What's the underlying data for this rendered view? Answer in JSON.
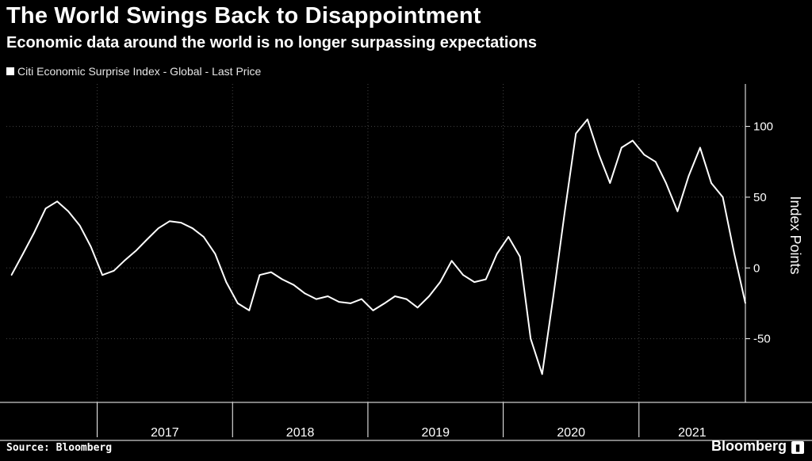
{
  "header": {
    "title": "The World Swings Back to Disappointment",
    "subtitle": "Economic data around the world is no longer surpassing expectations"
  },
  "footer": {
    "source": "Source: Bloomberg",
    "brand": "Bloomberg"
  },
  "colors": {
    "background": "#000000",
    "line": "#ffffff",
    "grid": "#444444"
  },
  "chart_data": {
    "type": "line",
    "title": "The World Swings Back to Disappointment",
    "subtitle": "Economic data around the world is no longer surpassing expectations",
    "ylabel": "Index Points",
    "xlabel": "",
    "ylim": [
      -95,
      130
    ],
    "y_ticks": [
      100,
      50,
      0,
      -50
    ],
    "x_tick_labels": [
      "2017",
      "2018",
      "2019",
      "2020",
      "2021"
    ],
    "grid": true,
    "legend_position": "top-left",
    "series": [
      {
        "name": "Citi Economic Surprise Index - Global - Last Price",
        "x": [
          "2016-05",
          "2016-06",
          "2016-07",
          "2016-08",
          "2016-09",
          "2016-10",
          "2016-11",
          "2016-12",
          "2017-01",
          "2017-02",
          "2017-03",
          "2017-04",
          "2017-05",
          "2017-06",
          "2017-07",
          "2017-08",
          "2017-09",
          "2017-10",
          "2017-11",
          "2017-12",
          "2018-01",
          "2018-02",
          "2018-03",
          "2018-04",
          "2018-05",
          "2018-06",
          "2018-07",
          "2018-08",
          "2018-09",
          "2018-10",
          "2018-11",
          "2018-12",
          "2019-01",
          "2019-02",
          "2019-03",
          "2019-04",
          "2019-05",
          "2019-06",
          "2019-07",
          "2019-08",
          "2019-09",
          "2019-10",
          "2019-11",
          "2019-12",
          "2020-01",
          "2020-02",
          "2020-03",
          "2020-04",
          "2020-05",
          "2020-06",
          "2020-07",
          "2020-08",
          "2020-09",
          "2020-10",
          "2020-11",
          "2020-12",
          "2021-01",
          "2021-02",
          "2021-03",
          "2021-04",
          "2021-05",
          "2021-06",
          "2021-07",
          "2021-08",
          "2021-09",
          "2021-10"
        ],
        "values": [
          -5,
          10,
          25,
          42,
          47,
          40,
          30,
          15,
          -5,
          -2,
          5,
          12,
          20,
          28,
          33,
          32,
          28,
          22,
          10,
          -10,
          -25,
          -30,
          -5,
          -3,
          -8,
          -12,
          -18,
          -22,
          -20,
          -24,
          -25,
          -22,
          -30,
          -25,
          -20,
          -22,
          -28,
          -20,
          -10,
          5,
          -5,
          -10,
          -8,
          10,
          22,
          8,
          -50,
          -75,
          -20,
          40,
          95,
          105,
          80,
          60,
          85,
          90,
          80,
          75,
          60,
          40,
          65,
          85,
          60,
          50,
          10,
          -25
        ]
      }
    ]
  }
}
